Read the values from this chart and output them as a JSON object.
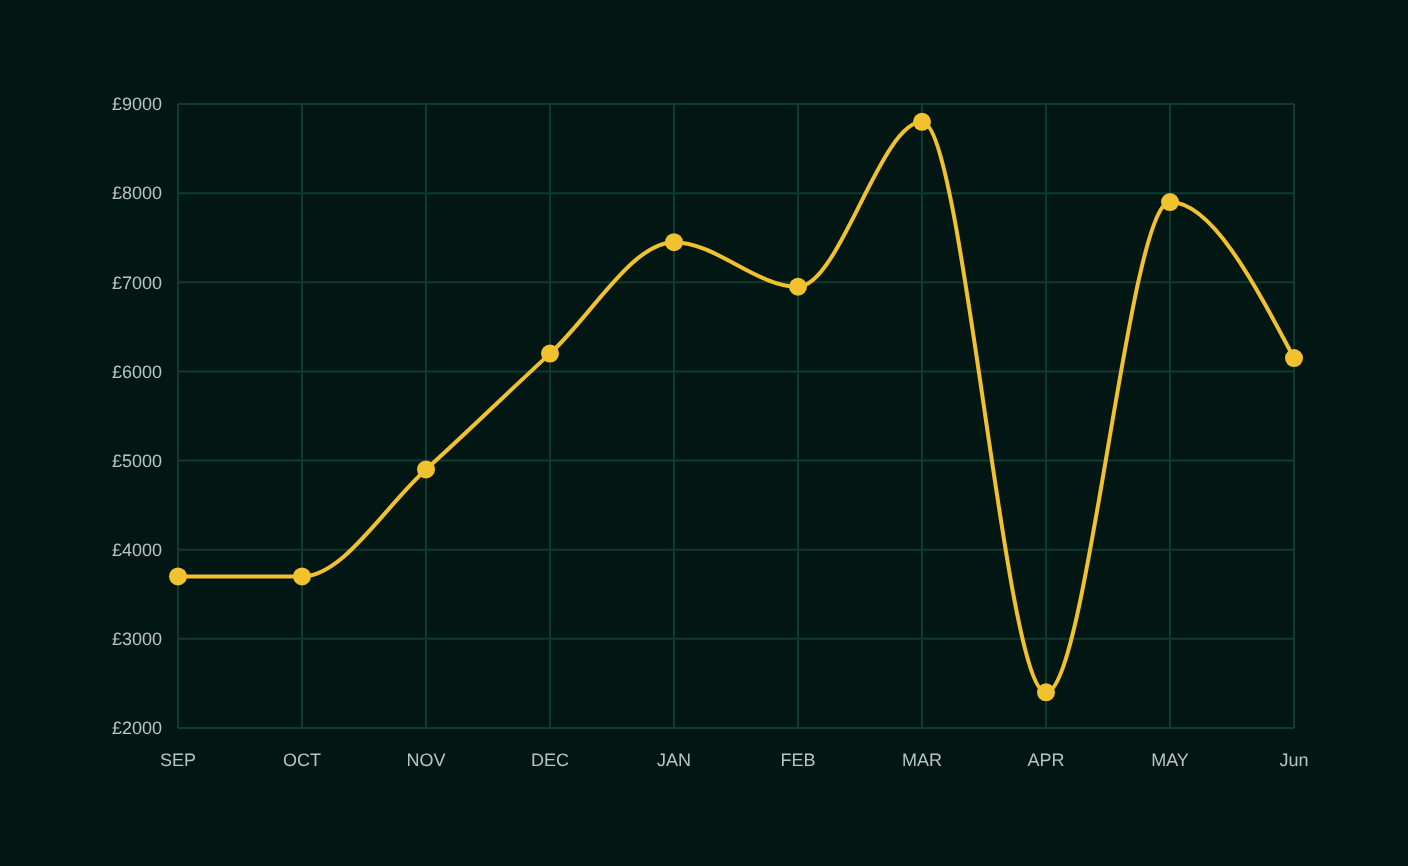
{
  "chart_data": {
    "type": "line",
    "categories": [
      "SEP",
      "OCT",
      "NOV",
      "DEC",
      "JAN",
      "FEB",
      "MAR",
      "APR",
      "MAY",
      "Jun"
    ],
    "series": [
      {
        "color": "#f2c12e",
        "values": [
          3700,
          3700,
          4900,
          6200,
          7450,
          6950,
          8800,
          2400,
          7900,
          6150
        ]
      }
    ],
    "ylim": [
      2000,
      9000
    ],
    "yticks": [
      {
        "value": 2000,
        "label": "£2000"
      },
      {
        "value": 3000,
        "label": "£3000"
      },
      {
        "value": 4000,
        "label": "£4000"
      },
      {
        "value": 5000,
        "label": "£5000"
      },
      {
        "value": 6000,
        "label": "£6000"
      },
      {
        "value": 7000,
        "label": "£7000"
      },
      {
        "value": 8000,
        "label": "£8000"
      },
      {
        "value": 9000,
        "label": "£9000"
      }
    ],
    "grid": true,
    "marker": "circle",
    "line_style": "solid"
  }
}
